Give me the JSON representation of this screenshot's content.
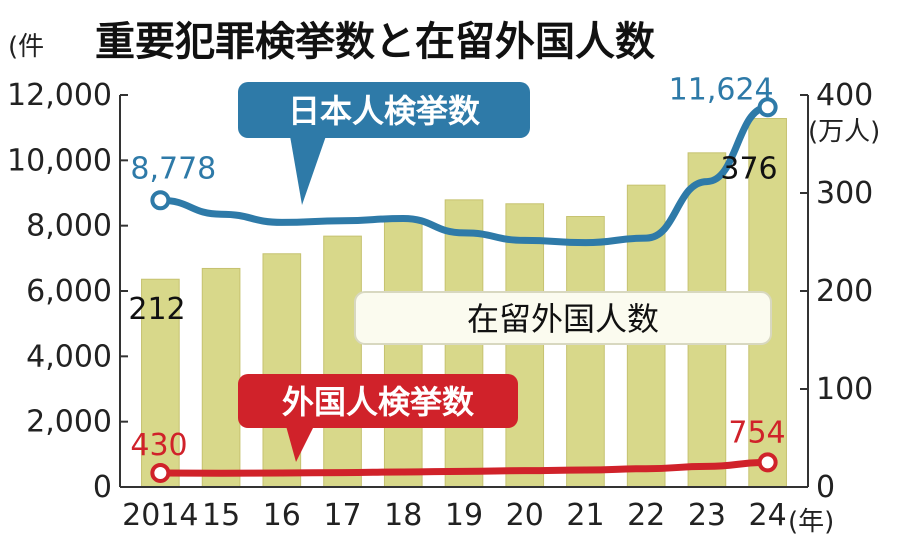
{
  "chart_data": {
    "type": "bar+line",
    "title": "重要犯罪検挙数と在留外国人数",
    "left_unit": "(件",
    "right_unit": "(万人)",
    "x_unit": "(年)",
    "categories": [
      "2014",
      "15",
      "16",
      "17",
      "18",
      "19",
      "20",
      "21",
      "22",
      "23",
      "24"
    ],
    "left_ticks": [
      "0",
      "2,000",
      "4,000",
      "6,000",
      "8,000",
      "10,000",
      "12,000"
    ],
    "right_ticks": [
      "0",
      "100",
      "200",
      "300",
      "400"
    ],
    "left_ylim": [
      0,
      12000
    ],
    "right_ylim": [
      0,
      400
    ],
    "series": [
      {
        "name": "在留外国人数",
        "axis": "right",
        "kind": "bar",
        "color": "#d8d88a",
        "values": [
          212,
          223,
          238,
          256,
          273,
          293,
          289,
          276,
          308,
          341,
          376
        ]
      },
      {
        "name": "日本人検挙数",
        "axis": "left",
        "kind": "line",
        "color": "#2e7aa8",
        "values": [
          8778,
          8350,
          8100,
          8150,
          8220,
          7780,
          7550,
          7480,
          7620,
          9350,
          11624
        ]
      },
      {
        "name": "外国人検挙数",
        "axis": "left",
        "kind": "line",
        "color": "#d0222a",
        "values": [
          430,
          420,
          430,
          440,
          460,
          480,
          500,
          520,
          560,
          630,
          754
        ]
      }
    ],
    "data_labels": {
      "bar_first": "212",
      "bar_last": "376",
      "blue_first": "8,778",
      "blue_last": "11,624",
      "red_first": "430",
      "red_last": "754"
    },
    "grid": false
  }
}
